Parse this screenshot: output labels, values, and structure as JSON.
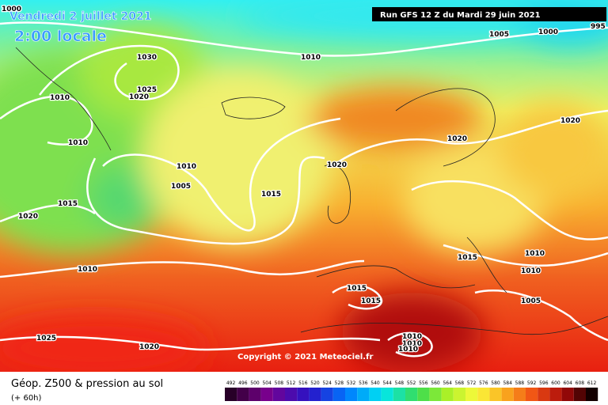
{
  "header": {
    "date": "Vendredi 2 juillet 2021",
    "time": "2:00 locale",
    "run": "Run GFS 12 Z du Mardi 29 juin 2021"
  },
  "copyright": "Copyright © 2021 Meteociel.fr",
  "legend": {
    "title": "Géop. Z500 & pression au sol",
    "subtitle": "(+ 60h)",
    "scale": [
      492,
      496,
      500,
      504,
      508,
      512,
      516,
      520,
      524,
      528,
      532,
      536,
      540,
      544,
      548,
      552,
      556,
      560,
      564,
      568,
      572,
      576,
      580,
      584,
      588,
      592,
      596,
      600,
      604,
      608,
      612
    ]
  },
  "isobar_labels": [
    1000,
    1005,
    1000,
    995,
    1010,
    1030,
    1025,
    1020,
    1010,
    1010,
    1010,
    1005,
    1015,
    1015,
    1020,
    1020,
    1020,
    1020,
    1015,
    1010,
    1010,
    1005,
    1010,
    1015,
    1015,
    1025,
    1020,
    1010,
    1010,
    1010
  ]
}
